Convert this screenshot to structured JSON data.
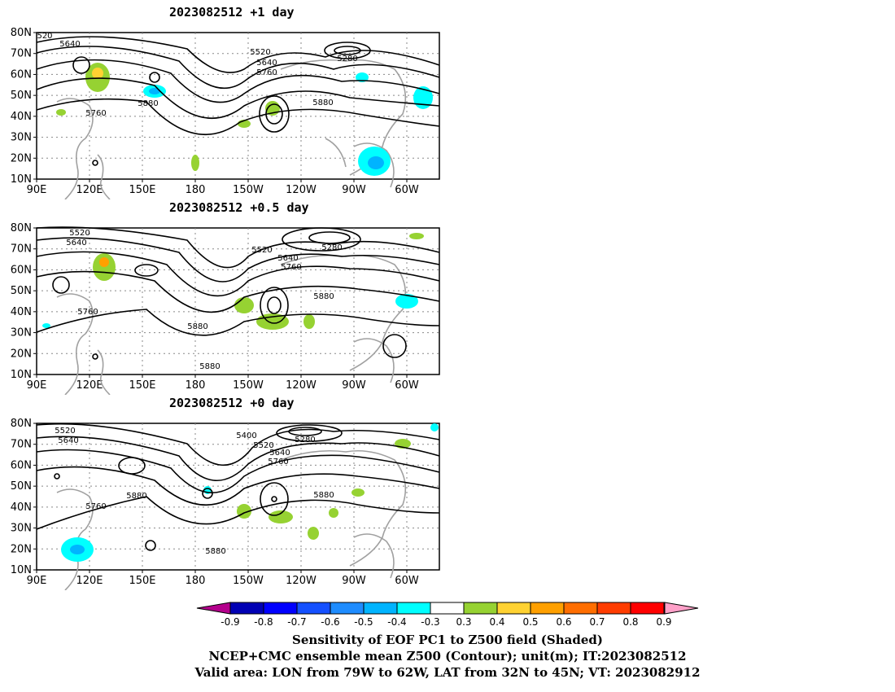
{
  "panels": [
    {
      "title": "2023082512  +1 day"
    },
    {
      "title": "2023082512  +0.5 day"
    },
    {
      "title": "2023082512  +0 day"
    }
  ],
  "lat_labels": [
    "80N",
    "70N",
    "60N",
    "50N",
    "40N",
    "30N",
    "20N",
    "10N"
  ],
  "lon_labels": [
    "90E",
    "120E",
    "150E",
    "180",
    "150W",
    "120W",
    "90W",
    "60W"
  ],
  "contour_labels": {
    "p1": [
      "520",
      "5640",
      "5520",
      "5640",
      "5760",
      "5280",
      "5880",
      "5760",
      "5880"
    ],
    "p2": [
      "5520",
      "5640",
      "5520",
      "5280",
      "5640",
      "5760",
      "5760",
      "5880",
      "5880",
      "5880"
    ],
    "p3": [
      "5520",
      "5640",
      "5400",
      "5280",
      "5520",
      "5640",
      "5760",
      "5880",
      "5760",
      "5880",
      "5880"
    ]
  },
  "colorbar": {
    "ticks": [
      "-0.9",
      "-0.8",
      "-0.7",
      "-0.6",
      "-0.5",
      "-0.4",
      "-0.3",
      "0.3",
      "0.4",
      "0.5",
      "0.6",
      "0.7",
      "0.8",
      "0.9"
    ],
    "colors": [
      "#0000b4",
      "#0000ff",
      "#1450ff",
      "#1e8cff",
      "#00b4ff",
      "#00ffff",
      "#ffffff",
      "#96d232",
      "#ffd232",
      "#ffa000",
      "#ff6e00",
      "#ff3c00",
      "#ff0000"
    ],
    "low_end_color": "#b4008c",
    "high_end_color": "#ffa0c8"
  },
  "caption": {
    "line1": "Sensitivity of EOF PC1 to Z500 field (Shaded)",
    "line2": "NCEP+CMC ensemble mean Z500 (Contour); unit(m); IT:2023082512",
    "line3": "Valid area: LON from 79W to 62W, LAT from 32N to 45N; VT: 2023082912"
  }
}
